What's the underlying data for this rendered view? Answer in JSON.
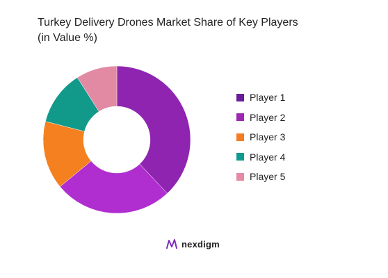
{
  "chart_data": {
    "type": "donut",
    "title": "Turkey Delivery Drones Market Share of Key Players",
    "subtitle": "(in Value %)",
    "categories": [
      "Player 1",
      "Player 2",
      "Player 3",
      "Player 4",
      "Player 5"
    ],
    "values": [
      38,
      26,
      15,
      12,
      9
    ],
    "colors": [
      "#8e24b0",
      "#b02ecf",
      "#f4801f",
      "#11998a",
      "#e28aa3"
    ],
    "legend_colors": [
      "#6a1b9a",
      "#9c27b0",
      "#f57c24",
      "#0f9b8e",
      "#e78aa3"
    ],
    "legend_position": "right"
  },
  "brand": {
    "name": "nexdigm",
    "logo": "nexdigm-logo-icon",
    "logo_color": "#7b2cbf"
  }
}
